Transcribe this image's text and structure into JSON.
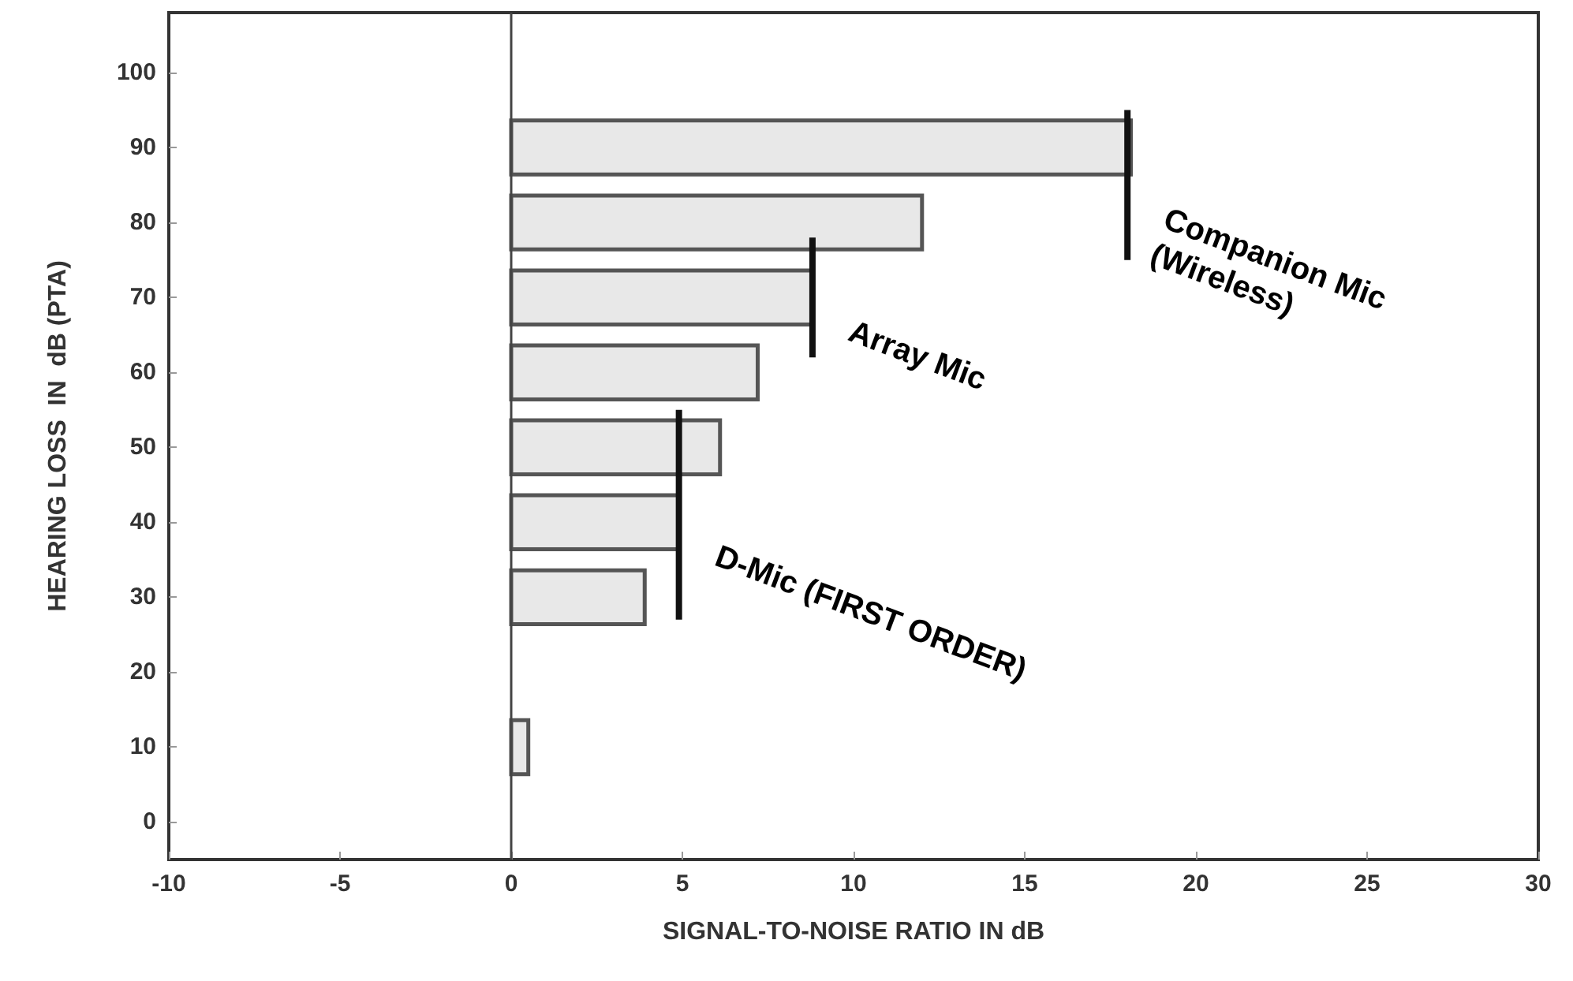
{
  "chart_data": {
    "type": "bar",
    "orientation": "horizontal",
    "xlabel": "SIGNAL-TO-NOISE RATIO IN dB",
    "ylabel": "HEARING LOSS  IN  dB (PTA)",
    "x": [
      10,
      30,
      40,
      50,
      60,
      70,
      80,
      90
    ],
    "series": [
      {
        "color": "#e8e8e8",
        "values": [
          0.5,
          3.9,
          4.9,
          6.1,
          7.2,
          8.8,
          12,
          18.1
        ]
      },
      {
        "type": "line",
        "color": "#111111",
        "x": [
          75,
          95
        ],
        "values": [
          18,
          18
        ]
      },
      {
        "type": "line",
        "color": "#111111",
        "x": [
          62,
          78
        ],
        "values": [
          8.8,
          8.8
        ]
      },
      {
        "type": "line",
        "color": "#111111",
        "x": [
          27,
          55
        ],
        "values": [
          4.9,
          4.9
        ]
      }
    ],
    "xlim": [
      -10,
      30
    ],
    "xticks": [
      -10,
      -5,
      0,
      5,
      10,
      15,
      20,
      25,
      30
    ],
    "ylim": [
      -5,
      108
    ],
    "yticks": [
      0,
      10,
      20,
      30,
      40,
      50,
      60,
      70,
      80,
      90,
      100
    ],
    "ref_lines": [
      {
        "axis": "x",
        "value": 0,
        "color": "#444444"
      }
    ],
    "annotations": [
      {
        "text": "Companion Mic\n(Wireless)",
        "x": 18,
        "y": 85
      },
      {
        "text": "Array Mic",
        "x": 8.8,
        "y": 70
      },
      {
        "text": "D-Mic (FIRST ORDER)",
        "x": 4.9,
        "y": 40
      }
    ],
    "grid": false
  }
}
